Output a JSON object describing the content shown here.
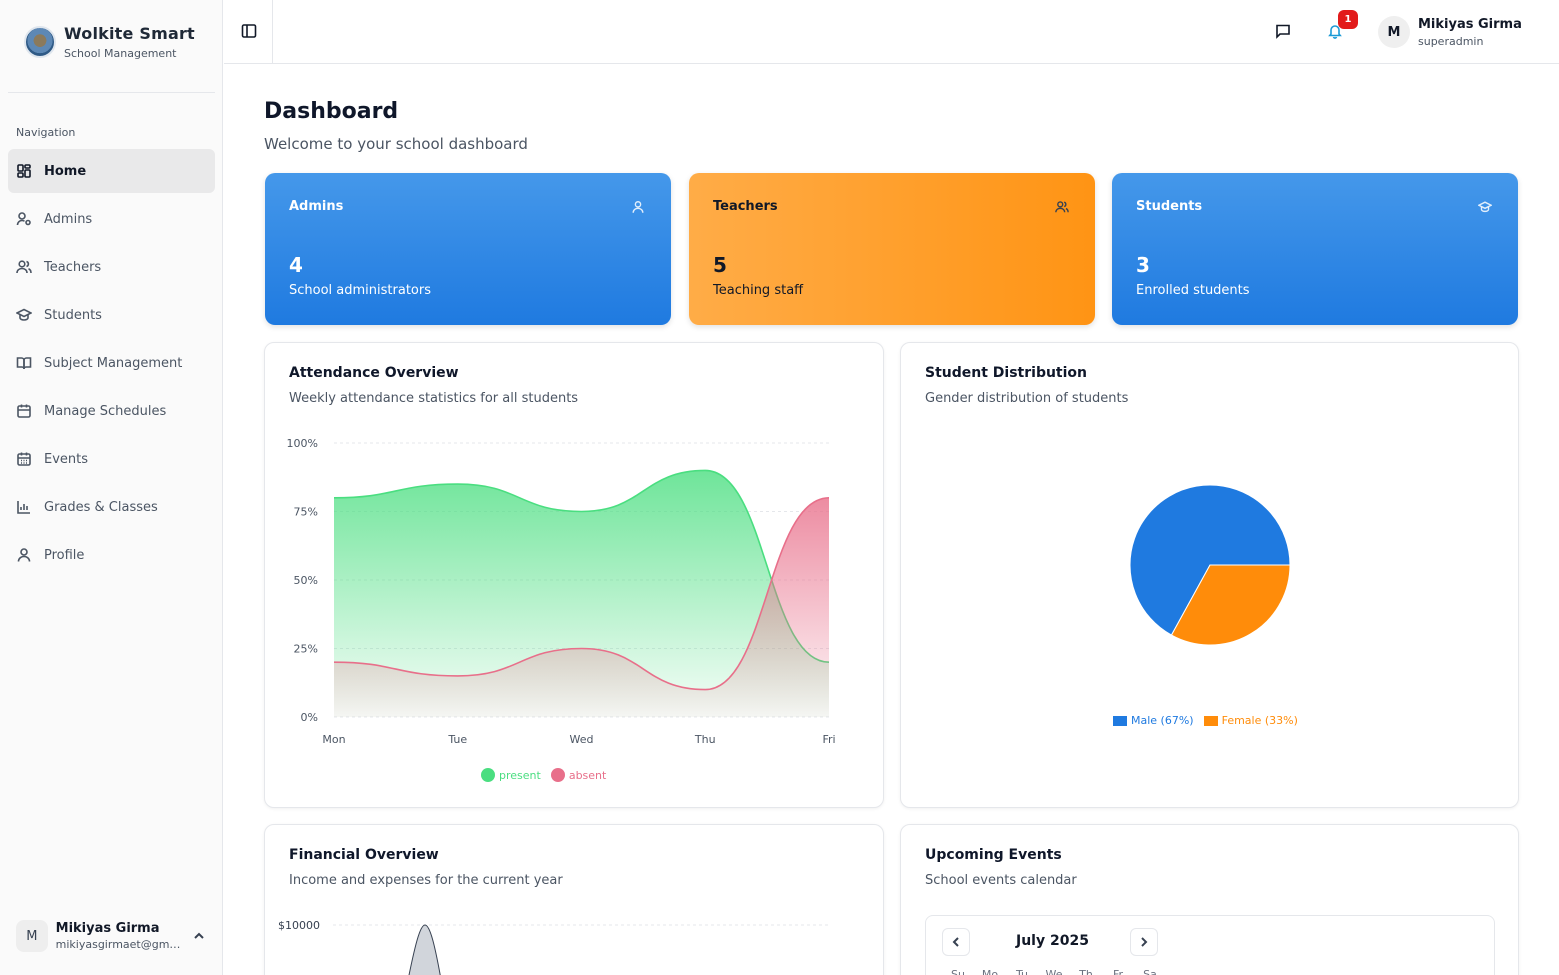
{
  "brand": {
    "title": "Wolkite Smart",
    "subtitle": "School Management"
  },
  "sidebar": {
    "nav_label": "Navigation",
    "items": [
      {
        "label": "Home",
        "icon": "dashboard-icon"
      },
      {
        "label": "Admins",
        "icon": "user-cog-icon"
      },
      {
        "label": "Teachers",
        "icon": "users-icon"
      },
      {
        "label": "Students",
        "icon": "graduation-cap-icon"
      },
      {
        "label": "Subject Management",
        "icon": "book-open-icon"
      },
      {
        "label": "Manage Schedules",
        "icon": "calendar-icon"
      },
      {
        "label": "Events",
        "icon": "calendar-days-icon"
      },
      {
        "label": "Grades & Classes",
        "icon": "bar-chart-icon"
      },
      {
        "label": "Profile",
        "icon": "user-icon"
      }
    ],
    "user": {
      "initial": "M",
      "name": "Mikiyas Girma",
      "email": "mikiyasgirmaet@gmail.com"
    }
  },
  "header": {
    "notifications": "1",
    "user": {
      "initial": "M",
      "name": "Mikiyas Girma",
      "role": "superadmin"
    }
  },
  "page": {
    "title": "Dashboard",
    "subtitle": "Welcome to your school dashboard"
  },
  "stats": [
    {
      "title": "Admins",
      "value": "4",
      "desc": "School administrators",
      "color": "#1f7ae0"
    },
    {
      "title": "Teachers",
      "value": "5",
      "desc": "Teaching staff",
      "color": "#ff9414"
    },
    {
      "title": "Students",
      "value": "3",
      "desc": "Enrolled students",
      "color": "#1f7ae0"
    }
  ],
  "attendance": {
    "title": "Attendance Overview",
    "subtitle": "Weekly attendance statistics for all students",
    "legend_present": "present",
    "legend_absent": "absent",
    "present_color": "#4ade80",
    "absent_color": "#e86f8a",
    "chart_data": {
      "type": "area",
      "categories": [
        "Mon",
        "Tue",
        "Wed",
        "Thu",
        "Fri"
      ],
      "series": [
        {
          "name": "present",
          "values": [
            80,
            85,
            75,
            90,
            20
          ]
        },
        {
          "name": "absent",
          "values": [
            20,
            15,
            25,
            10,
            80
          ]
        }
      ],
      "ylim": [
        0,
        100
      ],
      "yticks": [
        "0%",
        "25%",
        "50%",
        "75%",
        "100%"
      ],
      "legend": "bottom"
    }
  },
  "distribution": {
    "title": "Student Distribution",
    "subtitle": "Gender distribution of students",
    "chart_data": {
      "type": "pie",
      "categories": [
        "Male",
        "Female"
      ],
      "values": [
        67,
        33
      ],
      "colors": [
        "#1f7ae0",
        "#ff8c0a"
      ],
      "legend_labels": [
        "Male (67%)",
        "Female (33%)"
      ],
      "legend": "bottom"
    }
  },
  "financial": {
    "title": "Financial Overview",
    "subtitle": "Income and expenses for the current year",
    "top_tick": "$10000"
  },
  "events": {
    "title": "Upcoming Events",
    "subtitle": "School events calendar",
    "month": "July 2025",
    "weekdays": [
      "Su",
      "Mo",
      "Tu",
      "We",
      "Th",
      "Fr",
      "Sa"
    ]
  }
}
